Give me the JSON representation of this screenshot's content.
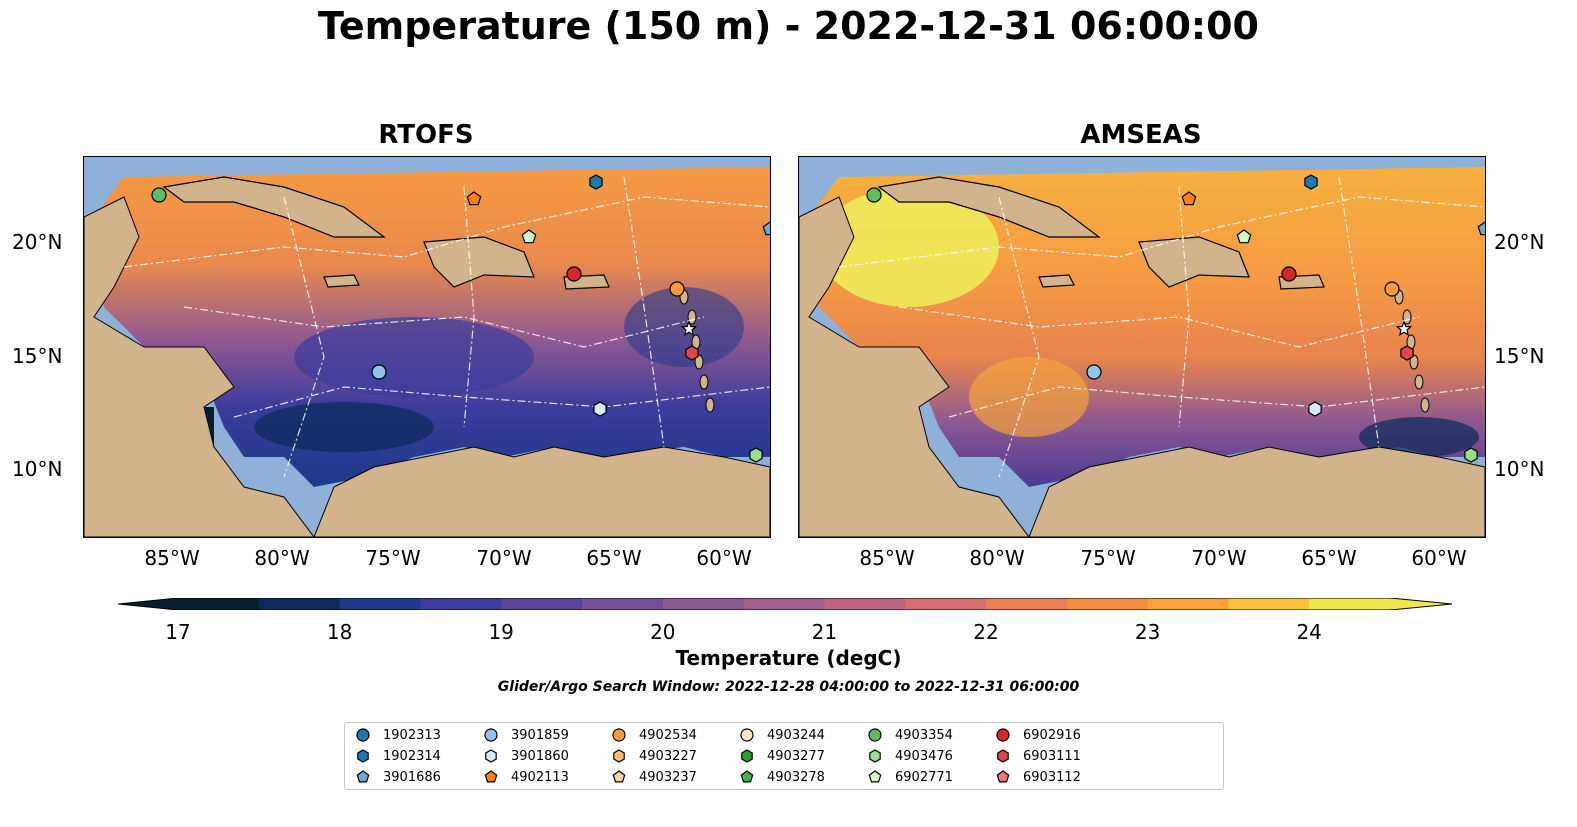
{
  "title": "Temperature (150 m) - 2022-12-31 06:00:00",
  "panels": [
    {
      "title": "RTOFS"
    },
    {
      "title": "AMSEAS"
    }
  ],
  "axes": {
    "lon_labels": [
      "85°W",
      "80°W",
      "75°W",
      "70°W",
      "65°W",
      "60°W"
    ],
    "lat_labels": [
      "20°N",
      "15°N",
      "10°N"
    ]
  },
  "colorbar": {
    "label": "Temperature (degC)",
    "ticks": [
      "17",
      "18",
      "19",
      "20",
      "21",
      "22",
      "23",
      "24"
    ],
    "range": [
      17,
      24.5
    ],
    "colors": [
      "#04202e",
      "#0c2a5a",
      "#1e3a8a",
      "#3b3c9c",
      "#5a4699",
      "#764f97",
      "#8c5892",
      "#a35f8c",
      "#bc6581",
      "#d6706e",
      "#ea7e55",
      "#f68c3f",
      "#f9a23c",
      "#f7c23f",
      "#f3e54c"
    ]
  },
  "search_window": "Glider/Argo Search Window: 2022-12-28 04:00:00 to 2022-12-31 06:00:00",
  "legend": {
    "items": [
      {
        "id": "1902313",
        "color": "#1f77b4",
        "marker": "circle"
      },
      {
        "id": "1902314",
        "color": "#1f77b4",
        "marker": "hexagon"
      },
      {
        "id": "3901686",
        "color": "#6fa8dc",
        "marker": "pentagon"
      },
      {
        "id": "3901859",
        "color": "#8ec5ea",
        "marker": "circle"
      },
      {
        "id": "3901860",
        "color": "#d6ecfa",
        "marker": "hexagon"
      },
      {
        "id": "4902113",
        "color": "#ff7f0e",
        "marker": "pentagon"
      },
      {
        "id": "4902534",
        "color": "#ff9a3c",
        "marker": "circle"
      },
      {
        "id": "4903227",
        "color": "#ffbb78",
        "marker": "hexagon"
      },
      {
        "id": "4903237",
        "color": "#ffcf9c",
        "marker": "pentagon"
      },
      {
        "id": "4903244",
        "color": "#fde2cc",
        "marker": "circle"
      },
      {
        "id": "4903277",
        "color": "#2ca02c",
        "marker": "hexagon"
      },
      {
        "id": "4903278",
        "color": "#3fb34a",
        "marker": "pentagon"
      },
      {
        "id": "4903354",
        "color": "#5cbf5c",
        "marker": "circle"
      },
      {
        "id": "4903476",
        "color": "#98df8a",
        "marker": "hexagon"
      },
      {
        "id": "6902771",
        "color": "#d4f5c8",
        "marker": "pentagon"
      },
      {
        "id": "6902916",
        "color": "#d62728",
        "marker": "circle"
      },
      {
        "id": "6903111",
        "color": "#e04848",
        "marker": "hexagon"
      },
      {
        "id": "6903112",
        "color": "#f07878",
        "marker": "pentagon"
      }
    ]
  }
}
